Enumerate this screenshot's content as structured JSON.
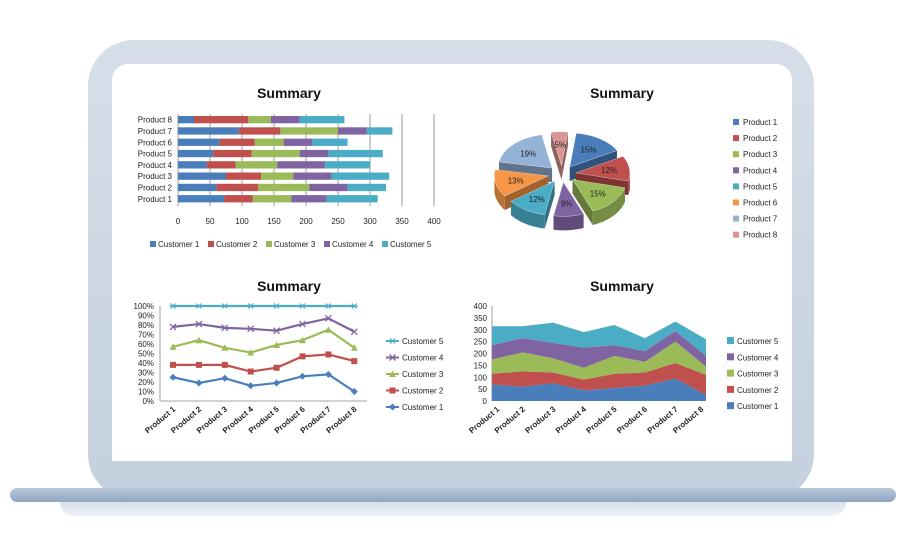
{
  "colors": {
    "customer_1": "#4a7ebb",
    "customer_2": "#c0504d",
    "customer_3": "#9bbb59",
    "customer_4": "#8064a2",
    "customer_5": "#4bacc6"
  },
  "chart_data": [
    {
      "type": "bar",
      "orientation": "horizontal",
      "stacked": true,
      "title": "Summary",
      "categories": [
        "Product 1",
        "Product 2",
        "Product 3",
        "Product 4",
        "Product 5",
        "Product 6",
        "Product 7",
        "Product 8"
      ],
      "series": [
        {
          "name": "Customer 1",
          "values": [
            72,
            60,
            75,
            45,
            55,
            65,
            95,
            25
          ]
        },
        {
          "name": "Customer 2",
          "values": [
            45,
            65,
            55,
            45,
            60,
            55,
            65,
            85
          ]
        },
        {
          "name": "Customer 3",
          "values": [
            60,
            80,
            50,
            65,
            75,
            45,
            90,
            35
          ]
        },
        {
          "name": "Customer 4",
          "values": [
            55,
            60,
            60,
            75,
            45,
            45,
            45,
            45
          ]
        },
        {
          "name": "Customer 5",
          "values": [
            80,
            60,
            90,
            70,
            85,
            55,
            40,
            70
          ]
        }
      ],
      "xlim": [
        0,
        400
      ],
      "xticks": [
        0,
        50,
        100,
        150,
        200,
        250,
        300,
        350,
        400
      ],
      "legend": "bottom"
    },
    {
      "type": "pie",
      "exploded": true,
      "style": "3d",
      "title": "Summary",
      "categories": [
        "Product 1",
        "Product 2",
        "Product 3",
        "Product 4",
        "Product 5",
        "Product 6",
        "Product 7",
        "Product 8"
      ],
      "values": [
        15,
        12,
        15,
        9,
        12,
        13,
        19,
        5
      ],
      "labels": [
        "15%",
        "12%",
        "15%",
        "9%",
        "12%",
        "13%",
        "19%",
        "5%"
      ],
      "slice_colors": [
        "#4a7ebb",
        "#c0504d",
        "#9bbb59",
        "#8064a2",
        "#4bacc6",
        "#f79646",
        "#95b3d7",
        "#da9694"
      ],
      "legend": "right"
    },
    {
      "type": "line",
      "stacked": "100%",
      "title": "Summary",
      "categories": [
        "Product 1",
        "Product 2",
        "Product 3",
        "Product 4",
        "Product 5",
        "Product 6",
        "Product 7",
        "Product 8"
      ],
      "series": [
        {
          "name": "Customer 1",
          "values": [
            0.25,
            0.19,
            0.24,
            0.16,
            0.19,
            0.26,
            0.28,
            0.1
          ],
          "marker": "diamond"
        },
        {
          "name": "Customer 2",
          "values": [
            0.38,
            0.38,
            0.38,
            0.31,
            0.35,
            0.47,
            0.49,
            0.42
          ],
          "marker": "square"
        },
        {
          "name": "Customer 3",
          "values": [
            0.57,
            0.64,
            0.56,
            0.51,
            0.59,
            0.64,
            0.75,
            0.56
          ],
          "marker": "triangle"
        },
        {
          "name": "Customer 4",
          "values": [
            0.78,
            0.81,
            0.77,
            0.76,
            0.74,
            0.81,
            0.87,
            0.73
          ],
          "marker": "x"
        },
        {
          "name": "Customer 5",
          "values": [
            1,
            1,
            1,
            1,
            1,
            1,
            1,
            1
          ],
          "marker": "star"
        }
      ],
      "ylim": [
        0,
        1
      ],
      "yticks": [
        "0%",
        "10%",
        "20%",
        "30%",
        "40%",
        "50%",
        "60%",
        "70%",
        "80%",
        "90%",
        "100%"
      ],
      "legend": "right"
    },
    {
      "type": "area",
      "stacked": true,
      "title": "Summary",
      "categories": [
        "Product 1",
        "Product 2",
        "Product 3",
        "Product 4",
        "Product 5",
        "Product 6",
        "Product 7",
        "Product 8"
      ],
      "series": [
        {
          "name": "Customer 1",
          "values": [
            70,
            60,
            75,
            45,
            55,
            65,
            95,
            25
          ]
        },
        {
          "name": "Customer 2",
          "values": [
            45,
            65,
            45,
            45,
            60,
            55,
            65,
            85
          ]
        },
        {
          "name": "Customer 3",
          "values": [
            60,
            80,
            60,
            50,
            75,
            45,
            90,
            35
          ]
        },
        {
          "name": "Customer 4",
          "values": [
            60,
            60,
            65,
            85,
            45,
            45,
            45,
            45
          ]
        },
        {
          "name": "Customer 5",
          "values": [
            80,
            50,
            85,
            65,
            85,
            55,
            40,
            70
          ]
        }
      ],
      "ylim": [
        0,
        400
      ],
      "yticks": [
        0,
        50,
        100,
        150,
        200,
        250,
        300,
        350,
        400
      ],
      "legend": "right"
    }
  ]
}
